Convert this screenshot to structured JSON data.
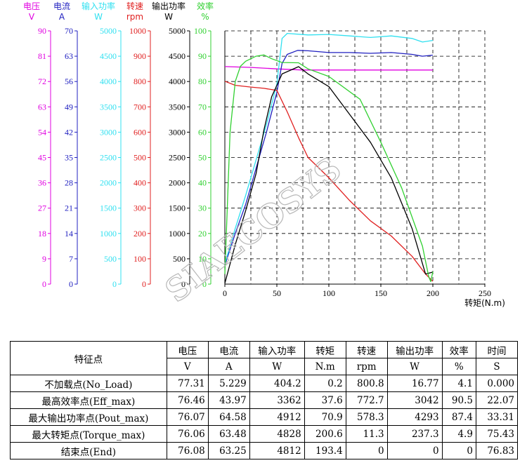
{
  "chart_data": {
    "type": "line",
    "xlabel": "转矩(N.m)",
    "x_ticks": [
      0,
      50,
      100,
      150,
      200,
      250
    ],
    "xlim": [
      0,
      250
    ],
    "grid": true,
    "watermark": "SIAECOSYS",
    "axes": [
      {
        "name": "电压",
        "unit": "V",
        "color": "#e000e0",
        "ticks": [
          0,
          9,
          18,
          27,
          36,
          45,
          54,
          63,
          72,
          81,
          90
        ],
        "max": 90
      },
      {
        "name": "电流",
        "unit": "A",
        "color": "#2020c0",
        "ticks": [
          0,
          7,
          14,
          21,
          28,
          35,
          42,
          49,
          56,
          63,
          70
        ],
        "max": 70
      },
      {
        "name": "输入功率",
        "unit": "W",
        "color": "#30e0f0",
        "ticks": [
          0,
          500,
          1000,
          1500,
          2000,
          2500,
          3000,
          3500,
          4000,
          4500,
          5000
        ],
        "max": 5000
      },
      {
        "name": "转速",
        "unit": "rpm",
        "color": "#e02020",
        "ticks": [
          0,
          100,
          200,
          300,
          400,
          500,
          600,
          700,
          800,
          900,
          1000
        ],
        "max": 1000
      },
      {
        "name": "输出功率",
        "unit": "W",
        "color": "#000000",
        "ticks": [
          0,
          500,
          1000,
          1500,
          2000,
          2500,
          3000,
          3500,
          4000,
          4500,
          5000
        ],
        "max": 5000
      },
      {
        "name": "效率",
        "unit": "%",
        "color": "#30d030",
        "ticks": [
          0,
          10,
          20,
          30,
          40,
          50,
          60,
          70,
          80,
          90,
          100
        ],
        "max": 100
      }
    ],
    "series": [
      {
        "name": "电压",
        "axis": 0,
        "color": "#e000e0",
        "points": [
          [
            0,
            77.3
          ],
          [
            25,
            77.0
          ],
          [
            50,
            76.5
          ],
          [
            75,
            76.1
          ],
          [
            100,
            76.1
          ],
          [
            150,
            76.1
          ],
          [
            200,
            76.1
          ]
        ]
      },
      {
        "name": "电流",
        "axis": 1,
        "color": "#2020c0",
        "points": [
          [
            0,
            5.2
          ],
          [
            10,
            14
          ],
          [
            20,
            22
          ],
          [
            30,
            32
          ],
          [
            40,
            42
          ],
          [
            50,
            53
          ],
          [
            55,
            61
          ],
          [
            60,
            63.5
          ],
          [
            70,
            64.6
          ],
          [
            80,
            64.5
          ],
          [
            100,
            64.0
          ],
          [
            120,
            64.0
          ],
          [
            140,
            63.8
          ],
          [
            160,
            64.0
          ],
          [
            180,
            63.5
          ],
          [
            190,
            63.0
          ],
          [
            200,
            63.3
          ]
        ]
      },
      {
        "name": "输入功率",
        "axis": 2,
        "color": "#30e0f0",
        "points": [
          [
            0,
            404
          ],
          [
            10,
            1100
          ],
          [
            20,
            1750
          ],
          [
            30,
            2450
          ],
          [
            40,
            3150
          ],
          [
            50,
            3950
          ],
          [
            55,
            4850
          ],
          [
            60,
            4950
          ],
          [
            80,
            4920
          ],
          [
            100,
            4930
          ],
          [
            120,
            4900
          ],
          [
            140,
            4870
          ],
          [
            160,
            4900
          ],
          [
            180,
            4850
          ],
          [
            190,
            4780
          ],
          [
            200,
            4812
          ]
        ]
      },
      {
        "name": "转速",
        "axis": 3,
        "color": "#e02020",
        "points": [
          [
            0,
            801
          ],
          [
            10,
            785
          ],
          [
            25,
            778
          ],
          [
            37.6,
            773
          ],
          [
            50,
            765
          ],
          [
            60,
            680
          ],
          [
            70.9,
            578
          ],
          [
            80,
            500
          ],
          [
            100,
            420
          ],
          [
            120,
            330
          ],
          [
            140,
            250
          ],
          [
            160,
            190
          ],
          [
            180,
            110
          ],
          [
            193,
            40
          ],
          [
            200,
            11
          ]
        ]
      },
      {
        "name": "输出功率",
        "axis": 4,
        "color": "#000000",
        "points": [
          [
            0,
            17
          ],
          [
            10,
            780
          ],
          [
            20,
            1450
          ],
          [
            30,
            2180
          ],
          [
            37.6,
            3042
          ],
          [
            45,
            3700
          ],
          [
            55,
            4150
          ],
          [
            70.9,
            4293
          ],
          [
            80,
            4150
          ],
          [
            100,
            3900
          ],
          [
            120,
            3350
          ],
          [
            140,
            2800
          ],
          [
            160,
            2100
          ],
          [
            180,
            1100
          ],
          [
            193,
            200
          ],
          [
            200,
            237
          ]
        ]
      },
      {
        "name": "效率",
        "axis": 5,
        "color": "#30d030",
        "points": [
          [
            0,
            4
          ],
          [
            5,
            60
          ],
          [
            10,
            80
          ],
          [
            15,
            86
          ],
          [
            20,
            88
          ],
          [
            30,
            90
          ],
          [
            37.6,
            90.5
          ],
          [
            45,
            89
          ],
          [
            55,
            87.5
          ],
          [
            70.9,
            87.4
          ],
          [
            80,
            85
          ],
          [
            100,
            82
          ],
          [
            130,
            73
          ],
          [
            150,
            56
          ],
          [
            170,
            38
          ],
          [
            190,
            15
          ],
          [
            196,
            3
          ],
          [
            198,
            1
          ],
          [
            200,
            4.9
          ]
        ]
      }
    ]
  },
  "table": {
    "headers": [
      "特征点",
      "电压",
      "电流",
      "输入功率",
      "转矩",
      "转速",
      "输出功率",
      "效率",
      "时间"
    ],
    "units": [
      "V",
      "A",
      "W",
      "N.m",
      "rpm",
      "W",
      "%",
      "S"
    ],
    "rows": [
      [
        "不加载点(No_Load)",
        "77.31",
        "5.229",
        "404.2",
        "0.2",
        "800.8",
        "16.77",
        "4.1",
        "0.000"
      ],
      [
        "最高效率点(Eff_max)",
        "76.46",
        "43.97",
        "3362",
        "37.6",
        "772.7",
        "3042",
        "90.5",
        "22.07"
      ],
      [
        "最大输出功率点(Pout_max)",
        "76.07",
        "64.58",
        "4912",
        "70.9",
        "578.3",
        "4293",
        "87.4",
        "33.31"
      ],
      [
        "最大转矩点(Torque_max)",
        "76.06",
        "63.48",
        "4828",
        "200.6",
        "11.3",
        "237.3",
        "4.9",
        "75.43"
      ],
      [
        "结束点(End)",
        "76.08",
        "63.25",
        "4812",
        "193.4",
        "0",
        "0",
        "0",
        "76.83"
      ]
    ]
  }
}
